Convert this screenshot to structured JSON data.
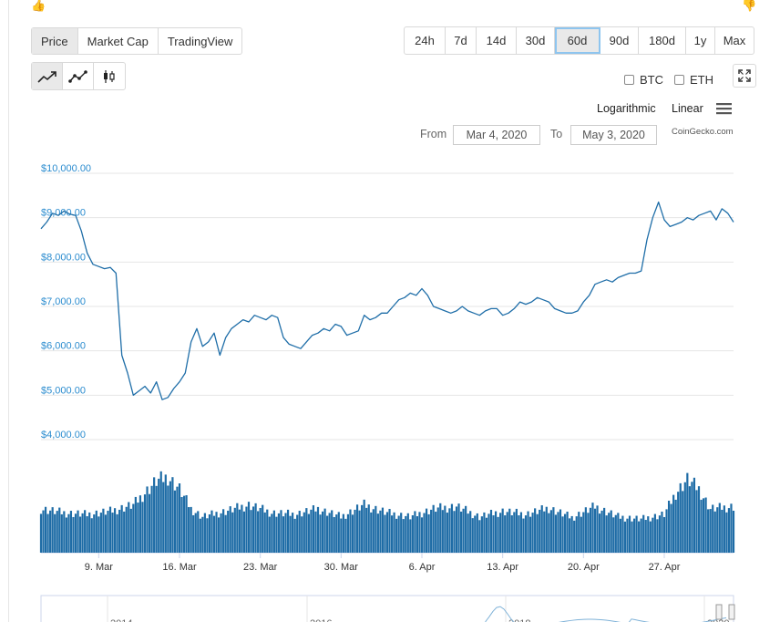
{
  "toolbar": {
    "chart_types": [
      {
        "label": "Price",
        "active": true
      },
      {
        "label": "Market Cap",
        "active": false
      },
      {
        "label": "TradingView",
        "active": false
      }
    ],
    "ranges": [
      {
        "label": "24h",
        "active": false
      },
      {
        "label": "7d",
        "active": false
      },
      {
        "label": "14d",
        "active": false
      },
      {
        "label": "30d",
        "active": false
      },
      {
        "label": "60d",
        "active": true
      },
      {
        "label": "90d",
        "active": false
      },
      {
        "label": "180d",
        "active": false
      },
      {
        "label": "1y",
        "active": false
      },
      {
        "label": "Max",
        "active": false
      }
    ],
    "styles": [
      "line-chart-icon",
      "line-dots-icon",
      "candlestick-icon"
    ],
    "compare": [
      {
        "label": "BTC",
        "checked": false
      },
      {
        "label": "ETH",
        "checked": false
      }
    ],
    "scale": {
      "log": "Logarithmic",
      "linear": "Linear"
    },
    "from_label": "From",
    "from_date": "Mar 4, 2020",
    "to_label": "To",
    "to_date": "May 3, 2020",
    "credit": "CoinGecko.com"
  },
  "colors": {
    "accent": "#1f6ea8",
    "axis_label": "#2b8ccf",
    "active_outline": "#8ec5ef"
  },
  "chart_data": {
    "type": "line",
    "title": "",
    "xlabel": "",
    "ylabel": "",
    "y_ticks": [
      "$4,000.00",
      "$5,000.00",
      "$6,000.00",
      "$7,000.00",
      "$8,000.00",
      "$9,000.00",
      "$10,000.00"
    ],
    "y_tick_values": [
      4000,
      5000,
      6000,
      7000,
      8000,
      9000,
      10000
    ],
    "ylim": [
      4000,
      10000
    ],
    "x_ticks": [
      "9. Mar",
      "16. Mar",
      "23. Mar",
      "30. Mar",
      "6. Apr",
      "13. Apr",
      "20. Apr",
      "27. Apr"
    ],
    "x_tick_days": [
      5,
      12,
      19,
      26,
      33,
      40,
      47,
      54
    ],
    "x_range_days": [
      0,
      60
    ],
    "grid": true,
    "legend": "none",
    "series": [
      {
        "x": [
          0,
          0.5,
          1,
          1.5,
          2,
          2.5,
          3,
          3.5,
          4,
          4.5,
          5,
          5.5,
          6,
          6.5,
          7,
          7.5,
          8,
          8.5,
          9,
          9.5,
          10,
          10.5,
          11,
          11.5,
          12,
          12.5,
          13,
          13.5,
          14,
          14.5,
          15,
          15.5,
          16,
          16.5,
          17,
          17.5,
          18,
          18.5,
          19,
          19.5,
          20,
          20.5,
          21,
          21.5,
          22,
          22.5,
          23,
          23.5,
          24,
          24.5,
          25,
          25.5,
          26,
          26.5,
          27,
          27.5,
          28,
          28.5,
          29,
          29.5,
          30,
          30.5,
          31,
          31.5,
          32,
          32.5,
          33,
          33.5,
          34,
          34.5,
          35,
          35.5,
          36,
          36.5,
          37,
          37.5,
          38,
          38.5,
          39,
          39.5,
          40,
          40.5,
          41,
          41.5,
          42,
          42.5,
          43,
          43.5,
          44,
          44.5,
          45,
          45.5,
          46,
          46.5,
          47,
          47.5,
          48,
          48.5,
          49,
          49.5,
          50,
          50.5,
          51,
          51.5,
          52,
          52.5,
          53,
          53.5,
          54,
          54.5,
          55,
          55.5,
          56,
          56.5,
          57,
          57.5,
          58,
          58.5,
          59,
          59.5,
          60
        ],
        "values": [
          8750,
          8900,
          9100,
          9050,
          9150,
          9080,
          9050,
          8700,
          8200,
          7950,
          7900,
          7850,
          7880,
          7750,
          5900,
          5500,
          5000,
          5100,
          5200,
          5050,
          5300,
          4900,
          4950,
          5150,
          5300,
          5500,
          6200,
          6500,
          6100,
          6200,
          6400,
          5900,
          6300,
          6500,
          6600,
          6700,
          6650,
          6800,
          6750,
          6700,
          6800,
          6750,
          6300,
          6150,
          6100,
          6050,
          6200,
          6350,
          6400,
          6500,
          6450,
          6600,
          6550,
          6350,
          6400,
          6450,
          6800,
          6700,
          6750,
          6850,
          6850,
          7000,
          7150,
          7200,
          7300,
          7250,
          7400,
          7250,
          7000,
          6950,
          6900,
          6850,
          6900,
          7000,
          6900,
          6850,
          6800,
          6900,
          6950,
          6950,
          6800,
          6850,
          6950,
          7100,
          7050,
          7100,
          7200,
          7150,
          7100,
          6950,
          6900,
          6850,
          6850,
          6900,
          7100,
          7250,
          7500,
          7550,
          7600,
          7550,
          7650,
          7700,
          7750,
          7750,
          7800,
          8500,
          9000,
          9350,
          8950,
          8800,
          8850,
          8900,
          9000,
          8950,
          9050,
          9100,
          9150,
          8950,
          9200,
          9100,
          8900
        ],
        "color": "#1f6ea8"
      }
    ],
    "volume": {
      "color": "#1e6ca6",
      "x": [
        0,
        2,
        4,
        6,
        8,
        10,
        11,
        12,
        13,
        14,
        16,
        18,
        20,
        22,
        24,
        26,
        28,
        30,
        32,
        34,
        36,
        38,
        40,
        42,
        44,
        46,
        48,
        50,
        52,
        54,
        55,
        56,
        57,
        58,
        60
      ],
      "values": [
        55,
        50,
        48,
        52,
        60,
        90,
        95,
        80,
        55,
        45,
        52,
        60,
        50,
        48,
        55,
        45,
        60,
        50,
        45,
        55,
        58,
        45,
        52,
        48,
        56,
        44,
        58,
        45,
        42,
        48,
        75,
        92,
        80,
        55,
        58
      ],
      "max": 100
    },
    "navigator": {
      "labels": [
        "2014",
        "2016",
        "2018",
        "2020"
      ]
    }
  }
}
